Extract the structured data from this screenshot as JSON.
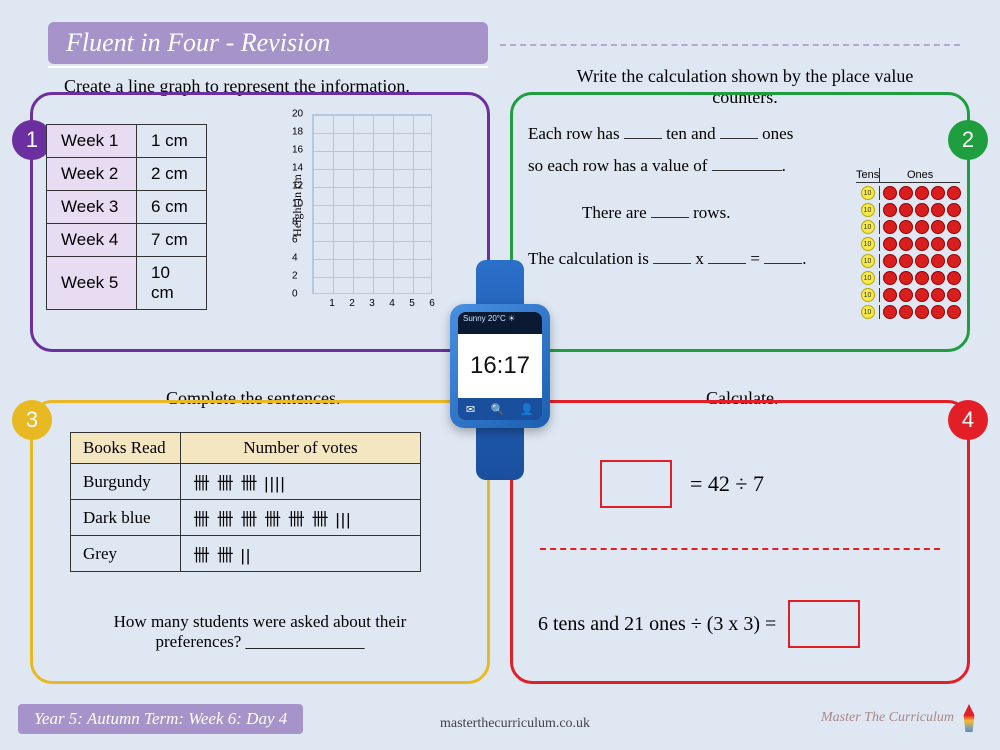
{
  "title": "Fluent in Four - Revision",
  "colors": {
    "page_bg": "#dfe7f3",
    "title_bg": "#a693c9",
    "q1": "#6b2fa0",
    "q2": "#1f9e3f",
    "q3": "#e8b923",
    "q4": "#e21e26",
    "table_header_q1": "#e8dcf2",
    "table_header_q3": "#f3e6c0",
    "grid_line": "#b8c7e0",
    "ten_counter": "#f7e94a",
    "one_counter": "#d91e1e",
    "watch_strap": "#1a4f9e",
    "watch_case": "#4a90e2"
  },
  "numbers": {
    "one": "1",
    "two": "2",
    "three": "3",
    "four": "4"
  },
  "q1": {
    "prompt": "Create a line graph to represent the information.",
    "table": [
      {
        "label": "Week 1",
        "value": "1 cm"
      },
      {
        "label": "Week 2",
        "value": "2 cm"
      },
      {
        "label": "Week 3",
        "value": "6 cm"
      },
      {
        "label": "Week 4",
        "value": "7 cm"
      },
      {
        "label": "Week 5",
        "value": "10 cm"
      }
    ],
    "y_label": "Height in cm",
    "y_ticks": [
      "0",
      "2",
      "4",
      "6",
      "8",
      "10",
      "12",
      "14",
      "16",
      "18",
      "20"
    ],
    "x_ticks": [
      "1",
      "2",
      "3",
      "4",
      "5",
      "6"
    ],
    "ylim": [
      0,
      20
    ],
    "xlim": [
      0,
      6
    ]
  },
  "q2": {
    "prompt": "Write the calculation shown by the place value counters.",
    "line1a": "Each row has ",
    "line1b": " ten and ",
    "line1c": " ones",
    "line2a": "so each row has a value of ",
    "line2b": ".",
    "line3a": "There are ",
    "line3b": " rows.",
    "line4a": "The calculation is ",
    "line4b": " x ",
    "line4c": " = ",
    "line4d": ".",
    "headers": {
      "tens": "Tens",
      "ones": "Ones"
    },
    "rows": 8,
    "tens_per_row": 1,
    "ones_per_row": 5,
    "ten_label": "10"
  },
  "q3": {
    "prompt": "Complete the sentences.",
    "headers": {
      "col1": "Books Read",
      "col2": "Number of votes"
    },
    "rows": [
      {
        "label": "Burgundy",
        "tally": "卌 卌 卌 ||||"
      },
      {
        "label": "Dark blue",
        "tally": "卌 卌 卌 卌 卌 卌 |||"
      },
      {
        "label": "Grey",
        "tally": "卌 卌 ||"
      }
    ],
    "question": "How many students were asked about their preferences?  ______________"
  },
  "q4": {
    "prompt": "Calculate.",
    "eq1": "= 42 ÷ 7",
    "eq2": "6 tens and 21 ones ÷ (3 x 3) ="
  },
  "watch": {
    "weather": "Sunny 20°C ☀",
    "time": "16:17",
    "icons": {
      "mail": "✉",
      "search": "🔍",
      "user": "👤"
    }
  },
  "footer": {
    "pill": "Year 5: Autumn Term: Week 6: Day 4",
    "url": "masterthecurriculum.co.uk",
    "brand": "Master The Curriculum"
  }
}
